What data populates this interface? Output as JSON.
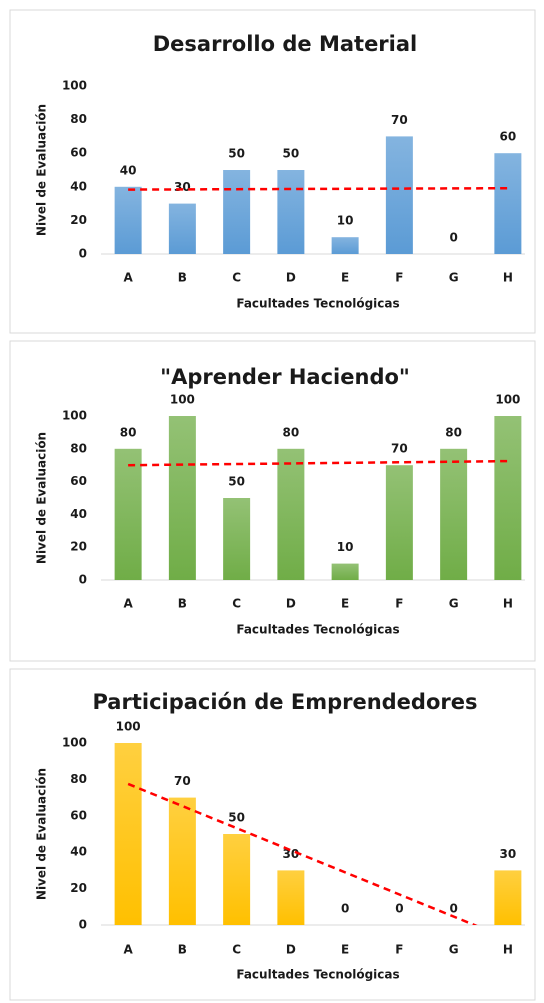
{
  "chart_data": [
    {
      "type": "bar",
      "title": "Desarrollo de Material",
      "x_label": "Facultades Tecnológicas",
      "y_label": "Nivel de Evaluación",
      "categories": [
        "A",
        "B",
        "C",
        "D",
        "E",
        "F",
        "G",
        "H"
      ],
      "values": [
        40,
        30,
        50,
        50,
        10,
        70,
        0,
        60
      ],
      "color": "#5b9bd5",
      "ylim": [
        0,
        100
      ],
      "yticks": [
        0,
        20,
        40,
        60,
        80,
        100
      ],
      "trendline": "linear",
      "trendline_color": "#ff0000"
    },
    {
      "type": "bar",
      "title": "\"Aprender Haciendo\"",
      "x_label": "Facultades Tecnológicas",
      "y_label": "Nivel de Evaluación",
      "categories": [
        "A",
        "B",
        "C",
        "D",
        "E",
        "F",
        "G",
        "H"
      ],
      "values": [
        80,
        100,
        50,
        80,
        10,
        70,
        80,
        100
      ],
      "color": "#70ad47",
      "ylim": [
        0,
        100
      ],
      "yticks": [
        0,
        20,
        40,
        60,
        80,
        100
      ],
      "trendline": "linear",
      "trendline_color": "#ff0000"
    },
    {
      "type": "bar",
      "title": "Participación de Emprendedores",
      "x_label": "Facultades Tecnológicas",
      "y_label": "Nivel de Evaluación",
      "categories": [
        "A",
        "B",
        "C",
        "D",
        "E",
        "F",
        "G",
        "H"
      ],
      "values": [
        100,
        70,
        50,
        30,
        0,
        0,
        0,
        30
      ],
      "color": "#ffc000",
      "ylim": [
        0,
        100
      ],
      "yticks": [
        0,
        20,
        40,
        60,
        80,
        100
      ],
      "trendline": "linear",
      "trendline_color": "#ff0000"
    }
  ]
}
